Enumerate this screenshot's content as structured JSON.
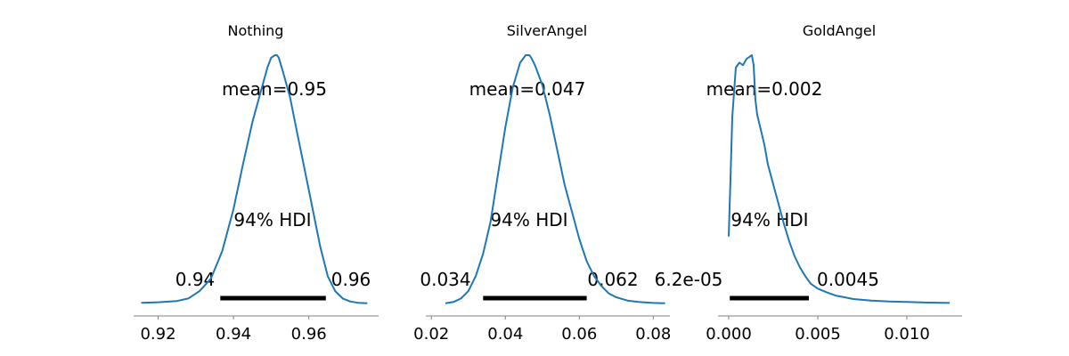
{
  "chart_data": [
    {
      "type": "line",
      "title": "Nothing",
      "mean_label": "mean=0.95",
      "hdi_label": "94% HDI",
      "hdi_low_label": "0.94",
      "hdi_high_label": "0.96",
      "hdi": [
        0.9365,
        0.9645
      ],
      "xlim": [
        0.9135,
        0.9785
      ],
      "xticks": [
        0.92,
        0.94,
        0.96
      ],
      "xtick_labels": [
        "0.92",
        "0.94",
        "0.96"
      ],
      "series": [
        {
          "color": "#1f77b4",
          "x": [
            0.9155,
            0.92,
            0.925,
            0.928,
            0.931,
            0.934,
            0.937,
            0.94,
            0.9425,
            0.945,
            0.947,
            0.949,
            0.95,
            0.951,
            0.9515,
            0.952,
            0.953,
            0.955,
            0.957,
            0.959,
            0.961,
            0.963,
            0.965,
            0.967,
            0.969,
            0.971,
            0.973,
            0.9755
          ],
          "y": [
            0.003,
            0.005,
            0.01,
            0.02,
            0.05,
            0.1,
            0.21,
            0.38,
            0.56,
            0.73,
            0.84,
            0.95,
            0.99,
            1.0,
            1.0,
            0.99,
            0.94,
            0.83,
            0.68,
            0.53,
            0.38,
            0.23,
            0.11,
            0.05,
            0.02,
            0.008,
            0.003,
            0.001
          ]
        }
      ]
    },
    {
      "type": "line",
      "title": "SilverAngel",
      "mean_label": "mean=0.047",
      "hdi_label": "94% HDI",
      "hdi_low_label": "0.034",
      "hdi_high_label": "0.062",
      "hdi": [
        0.034,
        0.062
      ],
      "xlim": [
        0.0185,
        0.0845
      ],
      "xticks": [
        0.02,
        0.04,
        0.06,
        0.08
      ],
      "xtick_labels": [
        "0.02",
        "0.04",
        "0.06",
        "0.08"
      ],
      "series": [
        {
          "color": "#1f77b4",
          "x": [
            0.0238,
            0.026,
            0.028,
            0.03,
            0.032,
            0.034,
            0.036,
            0.038,
            0.04,
            0.042,
            0.044,
            0.0455,
            0.0465,
            0.047,
            0.048,
            0.05,
            0.052,
            0.054,
            0.056,
            0.058,
            0.06,
            0.062,
            0.064,
            0.066,
            0.068,
            0.07,
            0.073,
            0.076,
            0.08,
            0.0832
          ],
          "y": [
            0.001,
            0.006,
            0.02,
            0.05,
            0.11,
            0.2,
            0.33,
            0.52,
            0.71,
            0.87,
            0.97,
            1.0,
            1.0,
            0.99,
            0.96,
            0.88,
            0.76,
            0.62,
            0.48,
            0.37,
            0.26,
            0.17,
            0.11,
            0.07,
            0.04,
            0.025,
            0.012,
            0.006,
            0.002,
            0.001
          ]
        }
      ]
    },
    {
      "type": "line",
      "title": "GoldAngel",
      "mean_label": "mean=0.002",
      "hdi_label": "94% HDI",
      "hdi_low_label": "6.2e-05",
      "hdi_high_label": "0.0045",
      "hdi": [
        6.2e-05,
        0.0045
      ],
      "xlim": [
        -0.0006,
        0.0131
      ],
      "xticks": [
        0.0,
        0.005,
        0.01
      ],
      "xtick_labels": [
        "0.000",
        "0.005",
        "0.010"
      ],
      "series": [
        {
          "color": "#1f77b4",
          "x": [
            0.0,
            0.0001,
            0.0002,
            0.0004,
            0.0006,
            0.0008,
            0.001,
            0.0012,
            0.0013,
            0.0014,
            0.0015,
            0.0016,
            0.0018,
            0.002,
            0.0022,
            0.0025,
            0.0028,
            0.0031,
            0.0034,
            0.0037,
            0.004,
            0.0043,
            0.0046,
            0.005,
            0.0055,
            0.006,
            0.0065,
            0.007,
            0.008,
            0.009,
            0.01,
            0.011,
            0.012,
            0.0124
          ],
          "y": [
            0.27,
            0.5,
            0.75,
            0.95,
            0.97,
            0.96,
            0.985,
            0.995,
            1.0,
            0.96,
            0.82,
            0.76,
            0.7,
            0.64,
            0.56,
            0.48,
            0.4,
            0.32,
            0.25,
            0.19,
            0.145,
            0.11,
            0.08,
            0.06,
            0.045,
            0.032,
            0.025,
            0.018,
            0.012,
            0.008,
            0.006,
            0.004,
            0.003,
            0.002
          ]
        }
      ]
    }
  ]
}
